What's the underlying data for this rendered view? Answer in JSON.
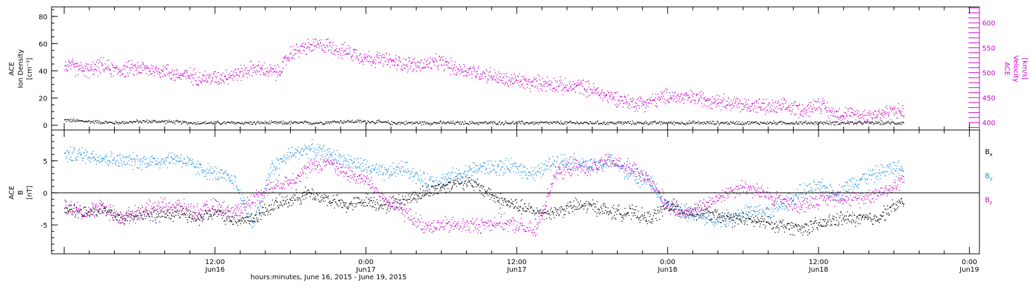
{
  "figure": {
    "xlabel": "hours:minutes, June 16, 2015 - June 19, 2015",
    "x_ticks": [
      {
        "t": 12,
        "line1": "12:00",
        "line2": "Jun16"
      },
      {
        "t": 24,
        "line1": "0:00",
        "line2": "Jun17"
      },
      {
        "t": 36,
        "line1": "12:00",
        "line2": "Jun17"
      },
      {
        "t": 48,
        "line1": "0:00",
        "line2": "Jun18"
      },
      {
        "t": 60,
        "line1": "12:00",
        "line2": "Jun18"
      },
      {
        "t": 72,
        "line1": "0:00",
        "line2": "Jun19"
      }
    ],
    "x_units_note": "hours from 2015-06-16 00:00"
  },
  "chart_data": [
    {
      "type": "scatter",
      "title": "",
      "xlim": [
        -1,
        72.8
      ],
      "left_axis": {
        "label_lines": [
          "ACE",
          "Ion Density",
          "[cm⁻³]"
        ],
        "ylim": [
          -3.5,
          87
        ],
        "ticks": [
          0,
          20,
          40,
          60,
          80
        ]
      },
      "right_axis": {
        "label_lines": [
          "ACE",
          "Velocity",
          "[km/s]"
        ],
        "ylim": [
          385,
          632
        ],
        "ticks": [
          400,
          450,
          500,
          550,
          600
        ],
        "color": "#cc00cc"
      },
      "series": [
        {
          "axis": "left",
          "color": "#000000",
          "x": [
            0,
            2,
            4,
            6,
            8,
            10,
            12,
            14,
            16,
            18,
            20,
            22,
            24,
            26,
            28,
            30,
            32,
            34,
            36,
            38,
            40,
            42,
            44,
            46,
            48,
            50,
            52,
            54,
            56,
            58,
            60,
            62,
            64,
            66,
            66.8
          ],
          "y": [
            4,
            3,
            2,
            3,
            3,
            2,
            2,
            2,
            2,
            2,
            2,
            3,
            3,
            2,
            2,
            2,
            2,
            2,
            2,
            2,
            2,
            2,
            2,
            2,
            2,
            2,
            2,
            2,
            2,
            2,
            2,
            2,
            2,
            2,
            2
          ]
        },
        {
          "axis": "right",
          "color": "#cc00cc",
          "x": [
            0,
            1,
            2,
            3,
            4,
            5,
            6,
            7,
            8,
            9,
            10,
            11,
            12,
            13,
            14,
            15,
            16,
            17,
            18,
            19,
            20,
            21,
            22,
            23,
            24,
            25,
            26,
            27,
            28,
            29,
            30,
            31,
            32,
            33,
            34,
            35,
            36,
            37,
            38,
            39,
            40,
            41,
            42,
            43,
            44,
            45,
            46,
            47,
            48,
            49,
            50,
            51,
            52,
            53,
            54,
            55,
            56,
            57,
            58,
            59,
            60,
            61,
            62,
            63,
            64,
            65,
            66,
            66.8
          ],
          "y": [
            515,
            510,
            505,
            515,
            505,
            508,
            510,
            506,
            505,
            495,
            495,
            490,
            490,
            495,
            500,
            510,
            505,
            500,
            540,
            550,
            555,
            555,
            545,
            540,
            530,
            528,
            522,
            520,
            515,
            518,
            522,
            510,
            505,
            500,
            495,
            485,
            485,
            478,
            480,
            478,
            470,
            475,
            465,
            455,
            450,
            440,
            440,
            445,
            455,
            450,
            450,
            448,
            445,
            440,
            435,
            435,
            430,
            432,
            430,
            425,
            440,
            420,
            418,
            415,
            415,
            420,
            425,
            420
          ]
        }
      ]
    },
    {
      "type": "scatter",
      "title": "",
      "xlim": [
        -1,
        72.8
      ],
      "left_axis": {
        "label_lines": [
          "ACE",
          "B",
          "[nT]"
        ],
        "ylim": [
          -9.5,
          9.8
        ],
        "ticks": [
          -5,
          0,
          5
        ]
      },
      "legend": {
        "placement": "right",
        "entries": [
          {
            "label": "B",
            "sub": "x",
            "color": "#000000"
          },
          {
            "label": "B",
            "sub": "y",
            "color": "#1a8ce0"
          },
          {
            "label": "B",
            "sub": "z",
            "color": "#cc00cc"
          }
        ]
      },
      "series": [
        {
          "name": "Bx",
          "color": "#000000",
          "x": [
            0,
            1.5,
            3,
            4.5,
            6,
            7.5,
            9,
            10.5,
            12,
            13.5,
            15,
            16.5,
            18,
            19.5,
            21,
            22.5,
            24,
            25.5,
            27,
            28.5,
            30,
            31.5,
            33,
            34.5,
            36,
            37.5,
            39,
            40.5,
            42,
            43.5,
            45,
            46.5,
            48,
            49.5,
            51,
            52.5,
            54,
            55.5,
            57,
            58.5,
            60,
            61.5,
            63,
            64.5,
            66,
            66.8
          ],
          "y": [
            -2,
            -3,
            -2.5,
            -4,
            -3,
            -3.5,
            -3,
            -4,
            -3,
            -4,
            -4,
            -2,
            -1,
            0,
            -1,
            -2,
            -1,
            -2,
            -1,
            0,
            1,
            2,
            1,
            -1,
            -2,
            -3,
            -3,
            -2,
            -2,
            -3,
            -3,
            -4,
            -2,
            -3,
            -3,
            -4,
            -4,
            -4.5,
            -5,
            -5.5,
            -5,
            -4,
            -4,
            -4,
            -2,
            -1.5
          ]
        },
        {
          "name": "By",
          "color": "#1a8ce0",
          "x": [
            0,
            1.5,
            3,
            4.5,
            6,
            7.5,
            9,
            10.5,
            12,
            13.5,
            15,
            16.5,
            18,
            19.5,
            21,
            22.5,
            24,
            25.5,
            27,
            28.5,
            30,
            31.5,
            33,
            34.5,
            36,
            37.5,
            39,
            40.5,
            42,
            43.5,
            45,
            46.5,
            48,
            49.5,
            51,
            52.5,
            54,
            55.5,
            57,
            58.5,
            60,
            61.5,
            63,
            64.5,
            66,
            66.8
          ],
          "y": [
            6,
            6,
            5.5,
            5,
            5,
            5,
            5.5,
            4,
            3,
            2,
            -5,
            4,
            6,
            7,
            6,
            5,
            4,
            3,
            4,
            2,
            2,
            3,
            4,
            4,
            4,
            3,
            5,
            5,
            4,
            5,
            3,
            2,
            -2,
            -3,
            -4,
            -4,
            -3,
            -3,
            -2,
            0,
            1,
            0,
            2,
            3,
            4,
            3.5
          ]
        },
        {
          "name": "Bz",
          "color": "#cc00cc",
          "x": [
            0,
            1.5,
            3,
            4.5,
            6,
            7.5,
            9,
            10.5,
            12,
            13.5,
            15,
            16.5,
            18,
            19.5,
            21,
            22.5,
            24,
            25.5,
            27,
            28.5,
            30,
            31.5,
            33,
            34.5,
            36,
            37.5,
            39,
            40.5,
            42,
            43.5,
            45,
            46.5,
            48,
            49.5,
            51,
            52.5,
            54,
            55.5,
            57,
            58.5,
            60,
            61.5,
            63,
            64.5,
            66,
            66.8
          ],
          "y": [
            -2,
            -3,
            -2,
            -4,
            -3,
            -2,
            -2,
            -3,
            -2,
            -3,
            -1,
            1,
            2,
            4,
            5,
            3,
            2,
            -1,
            -3,
            -5,
            -5,
            -5,
            -5,
            -4.5,
            -5,
            -6,
            3,
            4,
            4,
            5,
            4,
            2,
            -2,
            -3,
            -2,
            0,
            1,
            0,
            -1,
            -2,
            -1,
            -0.5,
            -1,
            0,
            1,
            2.5
          ]
        }
      ]
    }
  ]
}
